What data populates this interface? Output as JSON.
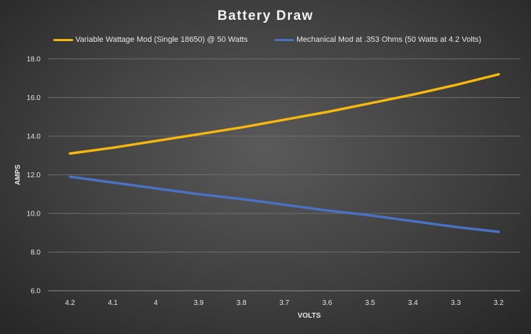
{
  "chart_data": {
    "type": "line",
    "title": "Battery Draw",
    "xlabel": "VOLTS",
    "ylabel": "AMPS",
    "categories": [
      "4.2",
      "4.1",
      "4",
      "3.9",
      "3.8",
      "3.7",
      "3.6",
      "3.5",
      "3.4",
      "3.3",
      "3.2"
    ],
    "ylim": [
      6.0,
      18.0
    ],
    "yticks": [
      "6.0",
      "8.0",
      "10.0",
      "12.0",
      "14.0",
      "16.0",
      "18.0"
    ],
    "grid": true,
    "legend_position": "top",
    "series": [
      {
        "name": "Variable Wattage Mod (Single 18650) @ 50 Watts",
        "color": "#f6b80f",
        "values": [
          13.1,
          13.4,
          13.75,
          14.1,
          14.45,
          14.85,
          15.25,
          15.7,
          16.15,
          16.65,
          17.2
        ]
      },
      {
        "name": "Mechanical Mod at .353 Ohms (50 Watts at 4.2 Volts)",
        "color": "#4a72c4",
        "values": [
          11.9,
          11.6,
          11.3,
          11.0,
          10.75,
          10.45,
          10.15,
          9.9,
          9.6,
          9.3,
          9.05
        ]
      }
    ]
  }
}
